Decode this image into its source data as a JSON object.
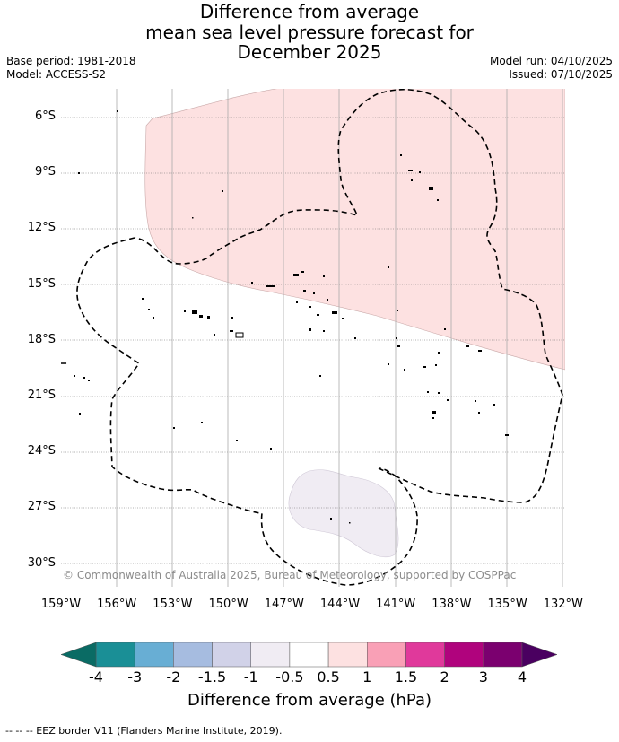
{
  "title": {
    "line1": "Difference from average",
    "line2": "mean sea level pressure forecast for",
    "line3": "December 2025"
  },
  "meta_left": {
    "base_period": "Base period: 1981-2018",
    "model": "Model: ACCESS-S2"
  },
  "meta_right": {
    "model_run": "Model run: 04/10/2025",
    "issued": "Issued: 07/10/2025"
  },
  "lat_labels": [
    "6°S",
    "9°S",
    "12°S",
    "15°S",
    "18°S",
    "21°S",
    "24°S",
    "27°S",
    "30°S"
  ],
  "lon_labels": [
    "159°W",
    "156°W",
    "153°W",
    "150°W",
    "147°W",
    "144°W",
    "141°W",
    "138°W",
    "135°W",
    "132°W"
  ],
  "copyright": "© Commonwealth of Australia 2025, Bureau of Meteorology, supported by COSPPac",
  "colorbar": {
    "title": "Difference from average (hPa)",
    "tick_labels": [
      "-4",
      "-3",
      "-2",
      "-1.5",
      "-1",
      "-0.5",
      "0.5",
      "1",
      "1.5",
      "2",
      "3",
      "4"
    ],
    "colors": [
      "#1a8f96",
      "#68aed4",
      "#a6bce0",
      "#d1d2e8",
      "#f0ecf3",
      "#ffffff",
      "#fde1e1",
      "#f9a0b6",
      "#e0399b",
      "#b0037d",
      "#7b006f"
    ],
    "under_color": "#0a6b64",
    "over_color": "#4a0060"
  },
  "footnote": "-- -- -- EEZ border V11 (Flanders Marine Institute, 2019).",
  "colors": {
    "positive_fill": "#fde1e1",
    "negative_fill": "#f0ecf3"
  }
}
